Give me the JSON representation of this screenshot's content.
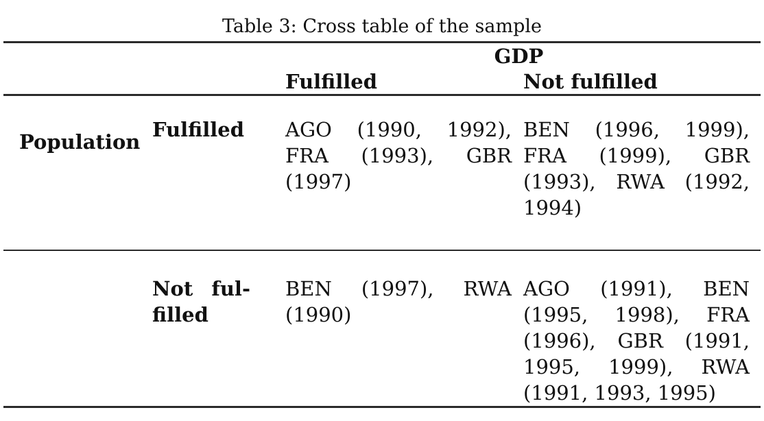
{
  "title": "Table 3: Cross table of the sample",
  "table": {
    "col_group_header": "GDP",
    "row_group_header": "Population",
    "col_headers": [
      "Fulfilled",
      "Not fulfilled"
    ],
    "rows": [
      {
        "label": "Fulfilled",
        "gdp_fulfilled": "AGO (1990, 1992), FRA (1993), GBR (1997)",
        "gdp_not_fulfilled": "BEN (1996, 1999), FRA (1999), GBR (1993), RWA (1992, 1994)"
      },
      {
        "label": "Not ful-filled",
        "gdp_fulfilled": "BEN (1997), RWA (1990)",
        "gdp_not_fulfilled": "AGO (1991), BEN (1995, 1998), FRA (1996), GBR (1991, 1995, 1999), RWA (1991, 1993, 1995)"
      }
    ]
  },
  "colors": {
    "background": "#ffffff",
    "text": "#111111",
    "rule": "#2a2a2a"
  }
}
